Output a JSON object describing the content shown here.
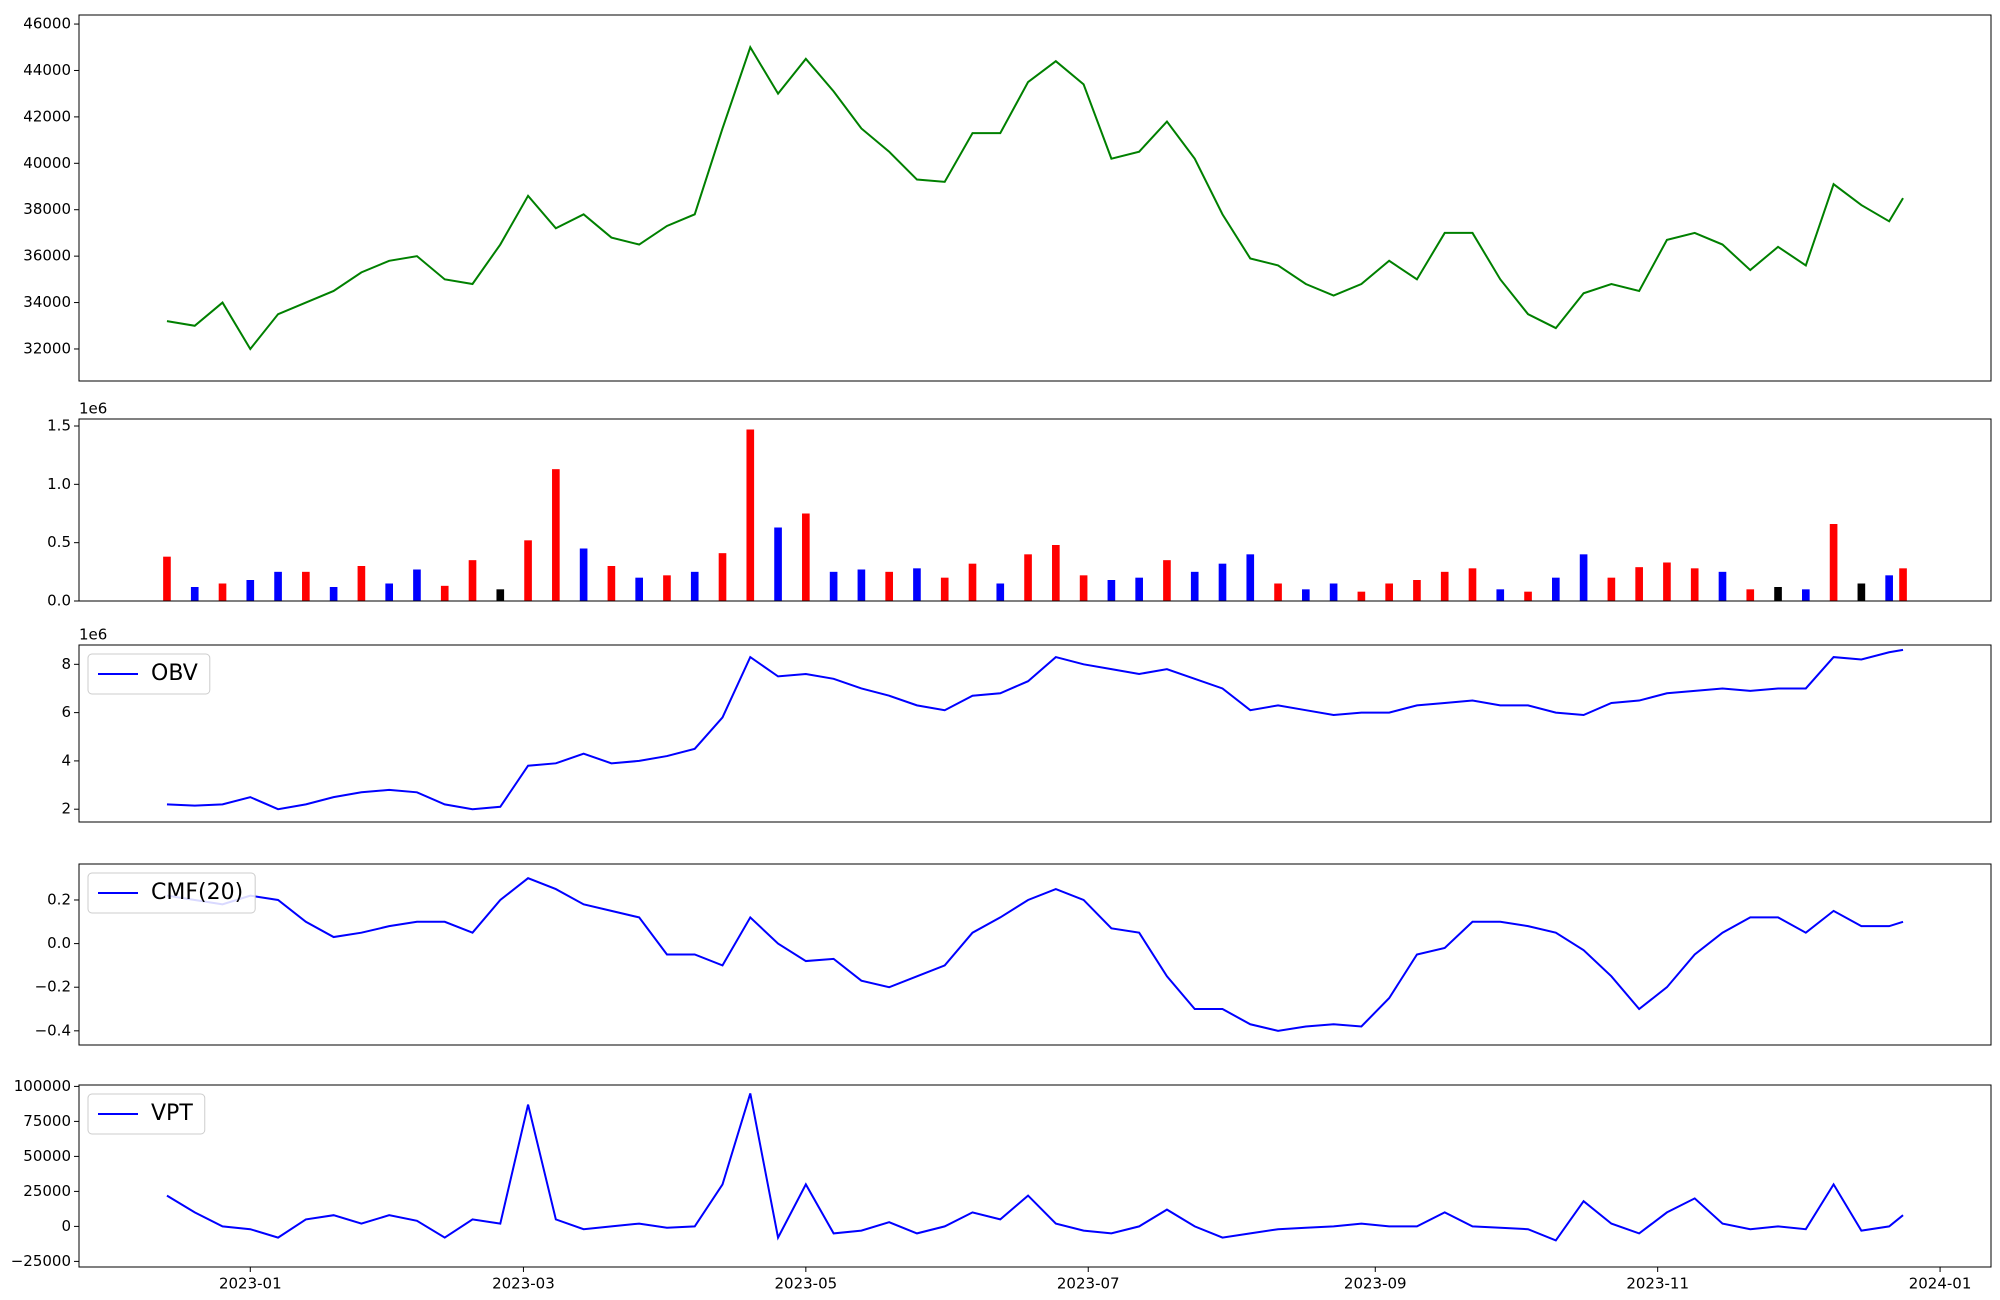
{
  "chart_data": [
    {
      "type": "line",
      "x": [
        -18,
        -12,
        -6,
        0,
        6,
        12,
        18,
        24,
        30,
        36,
        42,
        48,
        54,
        60,
        66,
        72,
        78,
        84,
        90,
        96,
        102,
        108,
        114,
        120,
        126,
        132,
        138,
        144,
        150,
        156,
        162,
        168,
        174,
        180,
        186,
        192,
        198,
        204,
        210,
        216,
        222,
        228,
        234,
        240,
        246,
        252,
        258,
        264,
        270,
        276,
        282,
        288,
        294,
        300,
        306,
        312,
        318,
        324,
        330,
        336,
        342,
        348,
        354,
        357
      ],
      "series": [
        {
          "color": "green",
          "values": [
            33200,
            33000,
            34000,
            32000,
            33500,
            34000,
            34500,
            35300,
            35800,
            36000,
            35000,
            34800,
            36500,
            38600,
            37200,
            37800,
            36800,
            36500,
            37300,
            37800,
            41500,
            45000,
            43000,
            44500,
            43100,
            41500,
            40500,
            39300,
            39200,
            41300,
            41300,
            43500,
            44400,
            43400,
            40200,
            40500,
            41800,
            40200,
            37800,
            35900,
            35600,
            34800,
            34300,
            34800,
            35800,
            35000,
            37000,
            37000,
            35000,
            33500,
            32900,
            34400,
            34800,
            34500,
            36700,
            37000,
            36500,
            35400,
            36400,
            35600,
            39100,
            38200,
            37500,
            38500
          ]
        }
      ],
      "xlim": [
        -37,
        376
      ],
      "ylim": [
        30620,
        46390
      ],
      "yticks": [
        32000,
        34000,
        36000,
        38000,
        40000,
        42000,
        44000,
        46000
      ]
    },
    {
      "type": "bar",
      "offset_label": "1e6",
      "x": [
        -18,
        -12,
        -6,
        0,
        6,
        12,
        18,
        24,
        30,
        36,
        42,
        48,
        54,
        60,
        66,
        72,
        78,
        84,
        90,
        96,
        102,
        108,
        114,
        120,
        126,
        132,
        138,
        144,
        150,
        156,
        162,
        168,
        174,
        180,
        186,
        192,
        198,
        204,
        210,
        216,
        222,
        228,
        234,
        240,
        246,
        252,
        258,
        264,
        270,
        276,
        282,
        288,
        294,
        300,
        306,
        312,
        318,
        324,
        330,
        336,
        342,
        348,
        354,
        357
      ],
      "values": [
        0.38,
        0.12,
        0.15,
        0.18,
        0.25,
        0.25,
        0.12,
        0.3,
        0.15,
        0.27,
        0.13,
        0.35,
        0.1,
        0.52,
        1.13,
        0.45,
        0.3,
        0.2,
        0.22,
        0.25,
        0.41,
        1.47,
        0.63,
        0.75,
        0.25,
        0.27,
        0.25,
        0.28,
        0.2,
        0.32,
        0.15,
        0.4,
        0.48,
        0.22,
        0.18,
        0.2,
        0.35,
        0.25,
        0.32,
        0.4,
        0.15,
        0.1,
        0.15,
        0.08,
        0.15,
        0.18,
        0.25,
        0.28,
        0.1,
        0.08,
        0.2,
        0.4,
        0.2,
        0.29,
        0.33,
        0.28,
        0.25,
        0.1,
        0.12,
        0.1,
        0.66,
        0.15,
        0.22,
        0.28
      ],
      "colors": [
        "red",
        "blue",
        "red",
        "blue",
        "blue",
        "red",
        "blue",
        "red",
        "blue",
        "blue",
        "red",
        "red",
        "black",
        "red",
        "red",
        "blue",
        "red",
        "blue",
        "red",
        "blue",
        "red",
        "red",
        "blue",
        "red",
        "blue",
        "blue",
        "red",
        "blue",
        "red",
        "red",
        "blue",
        "red",
        "red",
        "red",
        "blue",
        "blue",
        "red",
        "blue",
        "blue",
        "blue",
        "red",
        "blue",
        "blue",
        "red",
        "red",
        "red",
        "red",
        "red",
        "blue",
        "red",
        "blue",
        "blue",
        "red",
        "red",
        "red",
        "red",
        "blue",
        "red",
        "black",
        "blue",
        "red",
        "black",
        "blue",
        "red"
      ],
      "xlim": [
        -37,
        376
      ],
      "ylim": [
        0,
        1.56
      ],
      "yticks": [
        {
          "value": 0,
          "label": "0.0"
        },
        {
          "value": 0.5,
          "label": "0.5"
        },
        {
          "value": 1,
          "label": "1.0"
        },
        {
          "value": 1.5,
          "label": "1.5"
        }
      ]
    },
    {
      "type": "line",
      "offset_label": "1e6",
      "legend": "upper left",
      "x": [
        -18,
        -12,
        -6,
        0,
        6,
        12,
        18,
        24,
        30,
        36,
        42,
        48,
        54,
        60,
        66,
        72,
        78,
        84,
        90,
        96,
        102,
        108,
        114,
        120,
        126,
        132,
        138,
        144,
        150,
        156,
        162,
        168,
        174,
        180,
        186,
        192,
        198,
        204,
        210,
        216,
        222,
        228,
        234,
        240,
        246,
        252,
        258,
        264,
        270,
        276,
        282,
        288,
        294,
        300,
        306,
        312,
        318,
        324,
        330,
        336,
        342,
        348,
        354,
        357
      ],
      "series": [
        {
          "name": "OBV",
          "color": "blue",
          "values": [
            2.2,
            2.15,
            2.2,
            2.5,
            2.0,
            2.2,
            2.5,
            2.7,
            2.8,
            2.7,
            2.2,
            2.0,
            2.1,
            3.8,
            3.9,
            4.3,
            3.9,
            4.0,
            4.2,
            4.5,
            5.8,
            8.3,
            7.5,
            7.6,
            7.4,
            7.0,
            6.7,
            6.3,
            6.1,
            6.7,
            6.8,
            7.3,
            8.3,
            8.0,
            7.8,
            7.6,
            7.8,
            7.4,
            7.0,
            6.1,
            6.3,
            6.1,
            5.9,
            6.0,
            6.0,
            6.3,
            6.4,
            6.5,
            6.3,
            6.3,
            6.0,
            5.9,
            6.4,
            6.5,
            6.8,
            6.9,
            7.0,
            6.9,
            7.0,
            7.0,
            8.3,
            8.2,
            8.5,
            8.6
          ]
        }
      ],
      "xlim": [
        -37,
        376
      ],
      "ylim": [
        1.47,
        8.8
      ],
      "yticks": [
        2,
        4,
        6,
        8
      ]
    },
    {
      "type": "line",
      "legend": "upper left",
      "x": [
        -18,
        -12,
        -6,
        0,
        6,
        12,
        18,
        24,
        30,
        36,
        42,
        48,
        54,
        60,
        66,
        72,
        78,
        84,
        90,
        96,
        102,
        108,
        114,
        120,
        126,
        132,
        138,
        144,
        150,
        156,
        162,
        168,
        174,
        180,
        186,
        192,
        198,
        204,
        210,
        216,
        222,
        228,
        234,
        240,
        246,
        252,
        258,
        264,
        270,
        276,
        282,
        288,
        294,
        300,
        306,
        312,
        318,
        324,
        330,
        336,
        342,
        348,
        354,
        357
      ],
      "series": [
        {
          "name": "CMF(20)",
          "color": "blue",
          "values": [
            0.22,
            0.2,
            0.18,
            0.22,
            0.2,
            0.1,
            0.03,
            0.05,
            0.08,
            0.1,
            0.1,
            0.05,
            0.2,
            0.3,
            0.25,
            0.18,
            0.15,
            0.12,
            -0.05,
            -0.05,
            -0.1,
            0.12,
            0.0,
            -0.08,
            -0.07,
            -0.17,
            -0.2,
            -0.15,
            -0.1,
            0.05,
            0.12,
            0.2,
            0.25,
            0.2,
            0.07,
            0.05,
            -0.15,
            -0.3,
            -0.3,
            -0.37,
            -0.4,
            -0.38,
            -0.37,
            -0.38,
            -0.25,
            -0.05,
            -0.02,
            0.1,
            0.1,
            0.08,
            0.05,
            -0.03,
            -0.15,
            -0.3,
            -0.2,
            -0.05,
            0.05,
            0.12,
            0.12,
            0.05,
            0.15,
            0.08,
            0.08,
            0.1
          ]
        }
      ],
      "xlim": [
        -37,
        376
      ],
      "ylim": [
        -0.465,
        0.365
      ],
      "yticks": [
        {
          "value": -0.4,
          "label": "−0.4"
        },
        {
          "value": -0.2,
          "label": "−0.2"
        },
        {
          "value": 0,
          "label": "0.0"
        },
        0.2
      ]
    },
    {
      "type": "line",
      "legend": "upper left",
      "x": [
        -18,
        -12,
        -6,
        0,
        6,
        12,
        18,
        24,
        30,
        36,
        42,
        48,
        54,
        60,
        66,
        72,
        78,
        84,
        90,
        96,
        102,
        108,
        114,
        120,
        126,
        132,
        138,
        144,
        150,
        156,
        162,
        168,
        174,
        180,
        186,
        192,
        198,
        204,
        210,
        216,
        222,
        228,
        234,
        240,
        246,
        252,
        258,
        264,
        270,
        276,
        282,
        288,
        294,
        300,
        306,
        312,
        318,
        324,
        330,
        336,
        342,
        348,
        354,
        357
      ],
      "series": [
        {
          "name": "VPT",
          "color": "blue",
          "values": [
            22000,
            10000,
            0,
            -2000,
            -8000,
            5000,
            8000,
            2000,
            8000,
            4000,
            -8000,
            5000,
            2000,
            87000,
            5000,
            -2000,
            0,
            2000,
            -1000,
            0,
            30000,
            95000,
            -8000,
            30000,
            -5000,
            -3000,
            3000,
            -5000,
            0,
            10000,
            5000,
            22000,
            2000,
            -3000,
            -5000,
            0,
            12000,
            0,
            -8000,
            -5000,
            -2000,
            -1000,
            0,
            2000,
            0,
            0,
            10000,
            0,
            -1000,
            -2000,
            -10000,
            18000,
            2000,
            -5000,
            10000,
            20000,
            2000,
            -2000,
            0,
            -2000,
            30000,
            -3000,
            0,
            8000
          ]
        }
      ],
      "xlim": [
        -37,
        376
      ],
      "ylim": [
        -29000,
        101000
      ],
      "yticks": [
        {
          "value": -25000,
          "label": "−25000"
        },
        0,
        25000,
        50000,
        75000,
        100000
      ],
      "xticks": [
        {
          "value": 0,
          "label": "2023-01"
        },
        {
          "value": 59,
          "label": "2023-03"
        },
        {
          "value": 120,
          "label": "2023-05"
        },
        {
          "value": 181,
          "label": "2023-07"
        },
        {
          "value": 243,
          "label": "2023-09"
        },
        {
          "value": 304,
          "label": "2023-11"
        },
        {
          "value": 365,
          "label": "2024-01"
        }
      ]
    }
  ]
}
